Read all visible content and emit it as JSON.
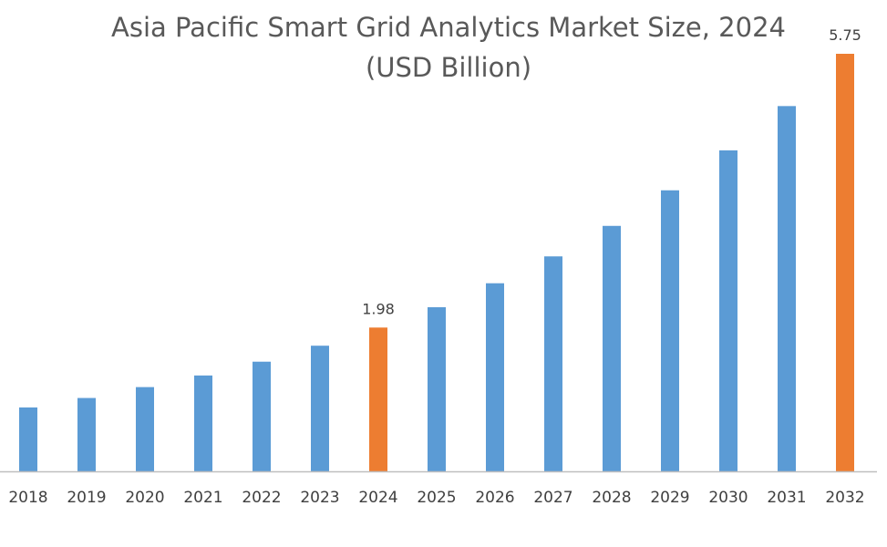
{
  "chart_data": {
    "type": "bar",
    "title_line1": "Asia Pacific Smart Grid Analytics Market Size, 2024",
    "title_line2": "(USD Billion)",
    "xlabel": "",
    "ylabel": "",
    "categories": [
      "2018",
      "2019",
      "2020",
      "2021",
      "2022",
      "2023",
      "2024",
      "2025",
      "2026",
      "2027",
      "2028",
      "2029",
      "2030",
      "2031",
      "2032"
    ],
    "values": [
      0.88,
      1.01,
      1.16,
      1.32,
      1.51,
      1.73,
      1.98,
      2.26,
      2.59,
      2.96,
      3.38,
      3.87,
      4.42,
      5.03,
      5.75
    ],
    "data_labels": {
      "2024": "1.98",
      "2032": "5.75"
    },
    "highlight": [
      "2024",
      "2032"
    ],
    "ylim": [
      0,
      5.75
    ],
    "grid": false,
    "legend": "none",
    "colors": {
      "default": "#5B9BD5",
      "highlight": "#ED7D31",
      "axis": "#BFBFBF"
    }
  }
}
